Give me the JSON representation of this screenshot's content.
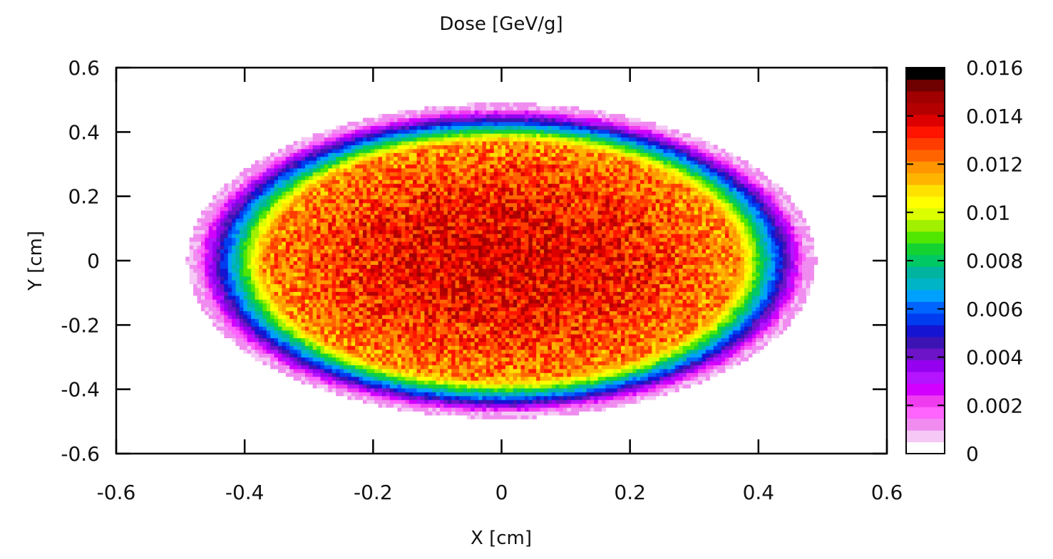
{
  "chart_data": {
    "type": "heatmap",
    "title": "Dose [GeV/g]",
    "xlabel": "X [cm]",
    "ylabel": "Y [cm]",
    "xlim": [
      -0.6,
      0.6
    ],
    "ylim": [
      -0.6,
      0.6
    ],
    "x_ticks": [
      "-0.6",
      "-0.4",
      "-0.2",
      "0",
      "0.2",
      "0.4",
      "0.6"
    ],
    "y_ticks": [
      "-0.6",
      "-0.4",
      "-0.2",
      "0",
      "0.2",
      "0.4",
      "0.6"
    ],
    "x_tick_values": [
      -0.6,
      -0.4,
      -0.2,
      0,
      0.2,
      0.4,
      0.6
    ],
    "y_tick_values": [
      -0.6,
      -0.4,
      -0.2,
      0,
      0.2,
      0.4,
      0.6
    ],
    "colorbar": {
      "range": [
        0,
        0.016
      ],
      "tick_labels": [
        "0.016",
        "0.014",
        "0.012",
        "0.01",
        "0.008",
        "0.006",
        "0.004",
        "0.002",
        "0"
      ],
      "tick_values": [
        0.016,
        0.014,
        0.012,
        0.01,
        0.008,
        0.006,
        0.004,
        0.002,
        0
      ],
      "colors": [
        "#ffffff",
        "#f5c8f5",
        "#f08cf0",
        "#ff64ff",
        "#f03cf0",
        "#d200ff",
        "#b414ff",
        "#9600f0",
        "#6e14c8",
        "#3c14b4",
        "#1414d2",
        "#003cf0",
        "#0064ff",
        "#00a0ff",
        "#00b4c8",
        "#00b4a0",
        "#00c864",
        "#14d232",
        "#50e600",
        "#a0f000",
        "#dcff00",
        "#ffff00",
        "#ffe100",
        "#ffb400",
        "#ff9600",
        "#ff6400",
        "#ff3c00",
        "#ff1400",
        "#dc0000",
        "#b40000",
        "#a00000",
        "#6e0000",
        "#000000"
      ]
    },
    "field": {
      "shape": "ellipse",
      "center": [
        0,
        0
      ],
      "semi_axis_x": 0.475,
      "semi_axis_y": 0.475,
      "peak_dose": 0.0138,
      "plateau_dose": 0.0118,
      "edge_dose": 0.001
    }
  }
}
